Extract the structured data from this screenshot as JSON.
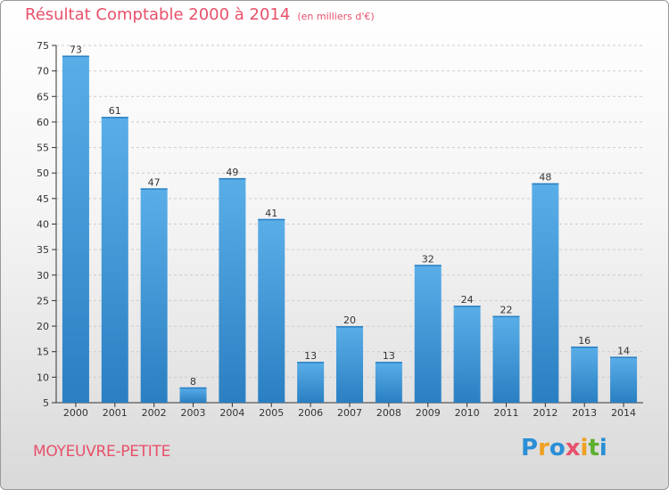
{
  "chart_data": {
    "type": "bar",
    "title": "Résultat Comptable 2000 à 2014",
    "subtitle": "(en milliers d'€)",
    "xlabel": "",
    "ylabel": "",
    "categories": [
      "2000",
      "2001",
      "2002",
      "2003",
      "2004",
      "2005",
      "2006",
      "2007",
      "2008",
      "2009",
      "2010",
      "2011",
      "2012",
      "2013",
      "2014"
    ],
    "values": [
      73,
      61,
      47,
      8,
      49,
      41,
      13,
      20,
      13,
      32,
      24,
      22,
      48,
      16,
      14
    ],
    "ylim": [
      5,
      75
    ],
    "yticks": [
      5,
      10,
      15,
      20,
      25,
      30,
      35,
      40,
      45,
      50,
      55,
      60,
      65,
      70,
      75
    ],
    "grid": true,
    "bar_color": "#3f9ee0",
    "bar_color_dark": "#2b7fc4"
  },
  "footer": {
    "place": "MOYEUVRE-PETITE",
    "logo_letters": [
      "P",
      "r",
      "o",
      "x",
      "i",
      "t",
      "i"
    ],
    "logo_colors": [
      "#2a8fd6",
      "#f0a020",
      "#2a8fd6",
      "#e8506a",
      "#f0a020",
      "#5cb030",
      "#2a8fd6"
    ]
  },
  "colors": {
    "title": "#e8506a",
    "axis": "#333333",
    "grid": "#cccccc"
  }
}
